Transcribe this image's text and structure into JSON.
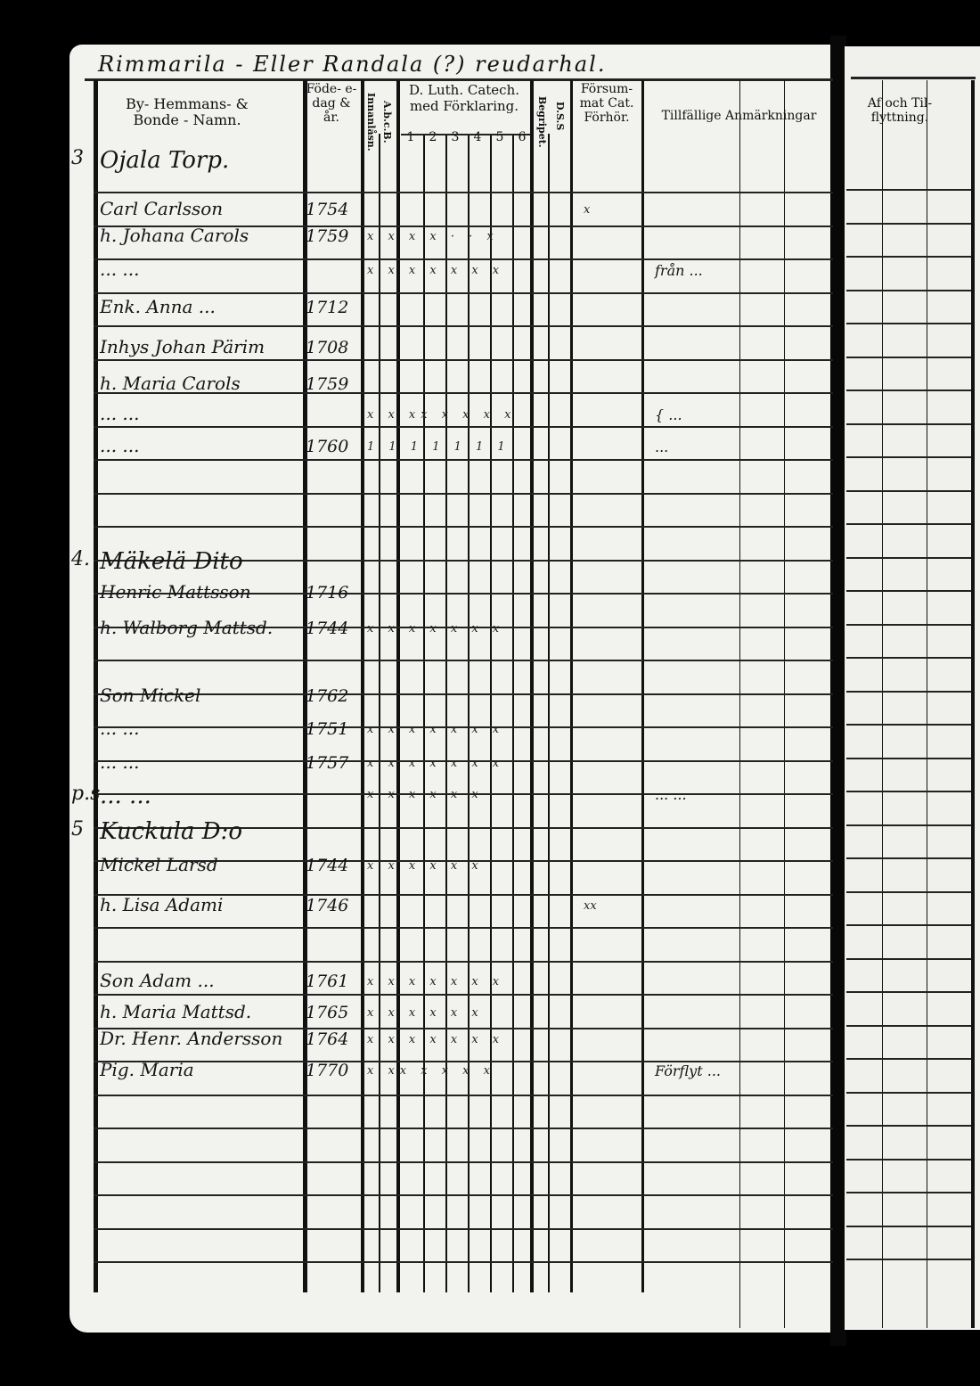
{
  "register_heading": "Rimmarila - Eller Randala (?) reudarhal.",
  "headers": {
    "name_col": "By- Hemmans- & Bonde - Namn.",
    "birth_col": "Föde- e- dag & år.",
    "innanlasn": "Innanlåsn.",
    "abc": "A.b.c.B.",
    "catech": "D. Luth. Catech. med Förklaring.",
    "catech_nums": [
      "1",
      "2",
      "3",
      "4",
      "5",
      "6"
    ],
    "begrip": "Begripet.",
    "dss": "D.S.S",
    "forsummat": "Försum- mat Cat. Förhör.",
    "remarks": "Tillfällige Anmärkningar",
    "moving": "Af och Til- flyttning."
  },
  "rows": [
    {
      "num": "3",
      "name": "Ojala Torp.",
      "year": "",
      "marks": "",
      "remark": ""
    },
    {
      "num": "",
      "name": "Carl Carlsson",
      "year": "1754",
      "marks": "",
      "forsum": "x",
      "remark": ""
    },
    {
      "num": "",
      "name": "h. Johana Carols",
      "year": "1759",
      "marks": "x x x x · · x",
      "remark": ""
    },
    {
      "num": "",
      "name": "... ...",
      "year": "",
      "marks": "x x x x x x x",
      "remark": "från ..."
    },
    {
      "num": "",
      "name": "Enk. Anna ...",
      "year": "1712",
      "marks": "",
      "remark": ""
    },
    {
      "num": "",
      "name": "Inhys Johan Pärim",
      "year": "1708",
      "marks": "",
      "remark": ""
    },
    {
      "num": "",
      "name": "h. Maria Carols",
      "year": "1759",
      "marks": "",
      "remark": ""
    },
    {
      "num": "",
      "name": "... ...",
      "year": "",
      "marks": "x x xx x x x x",
      "remark": "{ ..."
    },
    {
      "num": "",
      "name": "... ...",
      "year": "1760",
      "marks": "1 1 1 1 1 1 1",
      "remark": "..."
    },
    {
      "num": "4.",
      "name": "Mäkelä Dito",
      "year": "",
      "marks": "",
      "remark": ""
    },
    {
      "num": "",
      "name": "Henric Mattsson",
      "year": "1716",
      "marks": "",
      "remark": ""
    },
    {
      "num": "",
      "name": "h. Walborg Mattsd.",
      "year": "1744",
      "marks": "x x x x x x x",
      "remark": ""
    },
    {
      "num": "",
      "name": "Son Mickel",
      "year": "1762",
      "marks": "",
      "remark": ""
    },
    {
      "num": "",
      "name": "... ...",
      "year": "1751",
      "marks": "x x x x x x x",
      "remark": ""
    },
    {
      "num": "",
      "name": "... ...",
      "year": "1757",
      "marks": "x x x x x x x",
      "remark": ""
    },
    {
      "num": "p.s",
      "name": "... ...",
      "year": "",
      "marks": "x x x x x x",
      "remark": "... ..."
    },
    {
      "num": "5",
      "name": "Kuckula D:o",
      "year": "",
      "marks": "",
      "remark": ""
    },
    {
      "num": "",
      "name": "Mickel Larsd",
      "year": "1744",
      "marks": "x x x x x x",
      "remark": ""
    },
    {
      "num": "",
      "name": "h. Lisa Adami",
      "year": "1746",
      "marks": "",
      "forsum": "xx",
      "remark": ""
    },
    {
      "num": "",
      "name": "Son Adam ...",
      "year": "1761",
      "marks": "x x x x x x x",
      "remark": ""
    },
    {
      "num": "",
      "name": "h. Maria Mattsd.",
      "year": "1765",
      "marks": "x x x x x x",
      "remark": ""
    },
    {
      "num": "",
      "name": "Dr. Henr. Andersson",
      "year": "1764",
      "marks": "x x x x x x x",
      "remark": ""
    },
    {
      "num": "",
      "name": "Pig. Maria",
      "year": "1770",
      "marks": "x xx x x x x",
      "remark": "Förflyt ..."
    }
  ]
}
